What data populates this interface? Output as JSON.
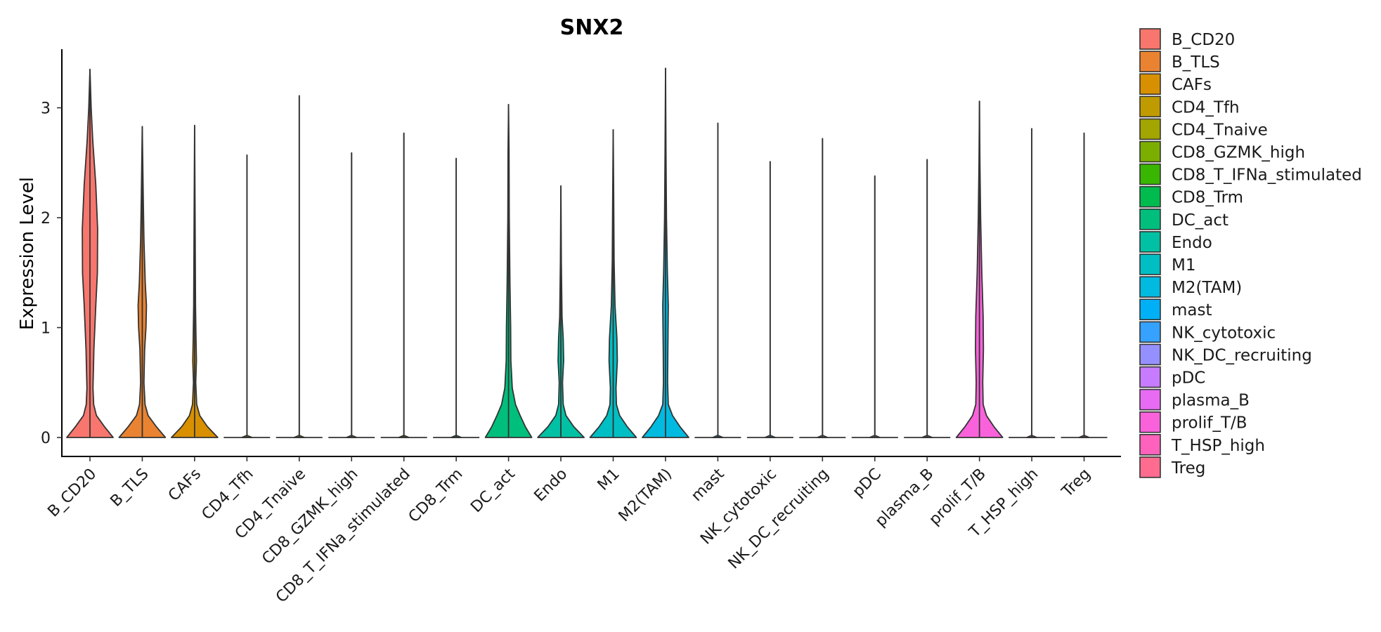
{
  "chart_data": {
    "type": "violin",
    "title": "SNX2",
    "xlabel": "",
    "ylabel": "Expression Level",
    "ylim": [
      -0.16,
      3.55
    ],
    "yticks": [
      0,
      1,
      2,
      3
    ],
    "legend_position": "right",
    "categories": [
      "B_CD20",
      "B_TLS",
      "CAFs",
      "CD4_Tfh",
      "CD4_Tnaive",
      "CD8_GZMK_high",
      "CD8_T_IFNa_stimulated",
      "CD8_Trm",
      "DC_act",
      "Endo",
      "M1",
      "M2(TAM)",
      "mast",
      "NK_cytotoxic",
      "NK_DC_recruiting",
      "pDC",
      "plasma_B",
      "prolif_T/B",
      "T_HSP_high",
      "Treg"
    ],
    "colors": [
      "#F8766D",
      "#EA8331",
      "#D89000",
      "#C09B00",
      "#A3A500",
      "#7CAE00",
      "#39B600",
      "#00BB4E",
      "#00BF7D",
      "#00C1A3",
      "#00BFC4",
      "#00BAE0",
      "#00B0F6",
      "#35A2FF",
      "#9590FF",
      "#C77CFF",
      "#E76BF3",
      "#FA62DB",
      "#FF62BC",
      "#FF6C90"
    ],
    "max_values": [
      3.35,
      2.83,
      2.84,
      2.57,
      3.11,
      2.59,
      2.77,
      2.54,
      3.03,
      2.29,
      2.8,
      3.36,
      2.86,
      2.51,
      2.72,
      2.38,
      2.53,
      3.06,
      2.81,
      2.77
    ],
    "density_profiles": [
      [
        [
          0,
          1.0
        ],
        [
          0.1,
          0.62
        ],
        [
          0.2,
          0.28
        ],
        [
          0.3,
          0.16
        ],
        [
          0.45,
          0.13
        ],
        [
          0.8,
          0.17
        ],
        [
          1.2,
          0.25
        ],
        [
          1.5,
          0.32
        ],
        [
          1.9,
          0.33
        ],
        [
          2.3,
          0.25
        ],
        [
          2.7,
          0.12
        ],
        [
          3.0,
          0.05
        ],
        [
          3.35,
          0
        ]
      ],
      [
        [
          0,
          1.0
        ],
        [
          0.1,
          0.6
        ],
        [
          0.2,
          0.25
        ],
        [
          0.3,
          0.12
        ],
        [
          0.5,
          0.07
        ],
        [
          0.8,
          0.1
        ],
        [
          1.0,
          0.16
        ],
        [
          1.2,
          0.18
        ],
        [
          1.4,
          0.13
        ],
        [
          1.8,
          0.07
        ],
        [
          2.2,
          0.04
        ],
        [
          2.83,
          0
        ]
      ],
      [
        [
          0,
          1.0
        ],
        [
          0.1,
          0.55
        ],
        [
          0.2,
          0.22
        ],
        [
          0.3,
          0.09
        ],
        [
          0.5,
          0.05
        ],
        [
          0.7,
          0.08
        ],
        [
          0.9,
          0.06
        ],
        [
          1.2,
          0.04
        ],
        [
          2.0,
          0.02
        ],
        [
          2.84,
          0
        ]
      ],
      [
        [
          0,
          0.018
        ],
        [
          0.02,
          0
        ],
        [
          2.57,
          0
        ]
      ],
      [
        [
          0,
          0.018
        ],
        [
          0.02,
          0
        ],
        [
          3.11,
          0
        ]
      ],
      [
        [
          0,
          0.018
        ],
        [
          0.02,
          0
        ],
        [
          2.59,
          0
        ]
      ],
      [
        [
          0,
          0.018
        ],
        [
          0.02,
          0
        ],
        [
          2.77,
          0
        ]
      ],
      [
        [
          0,
          0.018
        ],
        [
          0.02,
          0
        ],
        [
          2.54,
          0
        ]
      ],
      [
        [
          0,
          1.0
        ],
        [
          0.1,
          0.72
        ],
        [
          0.2,
          0.5
        ],
        [
          0.3,
          0.3
        ],
        [
          0.45,
          0.16
        ],
        [
          0.7,
          0.1
        ],
        [
          1.0,
          0.09
        ],
        [
          1.4,
          0.06
        ],
        [
          2.0,
          0.03
        ],
        [
          2.6,
          0.02
        ],
        [
          3.03,
          0
        ]
      ],
      [
        [
          0,
          1.0
        ],
        [
          0.1,
          0.55
        ],
        [
          0.2,
          0.22
        ],
        [
          0.3,
          0.1
        ],
        [
          0.5,
          0.07
        ],
        [
          0.7,
          0.12
        ],
        [
          0.9,
          0.1
        ],
        [
          1.1,
          0.05
        ],
        [
          1.6,
          0.02
        ],
        [
          2.29,
          0
        ]
      ],
      [
        [
          0,
          1.0
        ],
        [
          0.1,
          0.6
        ],
        [
          0.2,
          0.28
        ],
        [
          0.3,
          0.14
        ],
        [
          0.45,
          0.12
        ],
        [
          0.7,
          0.18
        ],
        [
          0.9,
          0.16
        ],
        [
          1.2,
          0.08
        ],
        [
          1.6,
          0.04
        ],
        [
          2.2,
          0.02
        ],
        [
          2.8,
          0
        ]
      ],
      [
        [
          0,
          1.0
        ],
        [
          0.1,
          0.62
        ],
        [
          0.2,
          0.3
        ],
        [
          0.3,
          0.12
        ],
        [
          0.5,
          0.09
        ],
        [
          0.8,
          0.1
        ],
        [
          1.2,
          0.12
        ],
        [
          1.5,
          0.08
        ],
        [
          2.0,
          0.04
        ],
        [
          2.6,
          0.02
        ],
        [
          3.36,
          0
        ]
      ],
      [
        [
          0,
          0.018
        ],
        [
          0.02,
          0
        ],
        [
          2.86,
          0
        ]
      ],
      [
        [
          0,
          0.018
        ],
        [
          0.02,
          0
        ],
        [
          2.51,
          0
        ]
      ],
      [
        [
          0,
          0.018
        ],
        [
          0.02,
          0
        ],
        [
          2.72,
          0
        ]
      ],
      [
        [
          0,
          0.018
        ],
        [
          0.02,
          0
        ],
        [
          2.38,
          0
        ]
      ],
      [
        [
          0,
          0.018
        ],
        [
          0.02,
          0
        ],
        [
          2.53,
          0
        ]
      ],
      [
        [
          0,
          1.0
        ],
        [
          0.1,
          0.62
        ],
        [
          0.2,
          0.3
        ],
        [
          0.3,
          0.16
        ],
        [
          0.5,
          0.14
        ],
        [
          0.8,
          0.17
        ],
        [
          1.1,
          0.16
        ],
        [
          1.5,
          0.1
        ],
        [
          2.0,
          0.05
        ],
        [
          2.5,
          0.02
        ],
        [
          3.06,
          0
        ]
      ],
      [
        [
          0,
          0.018
        ],
        [
          0.02,
          0
        ],
        [
          2.81,
          0
        ]
      ],
      [
        [
          0,
          0.018
        ],
        [
          0.02,
          0
        ],
        [
          2.77,
          0
        ]
      ]
    ]
  }
}
